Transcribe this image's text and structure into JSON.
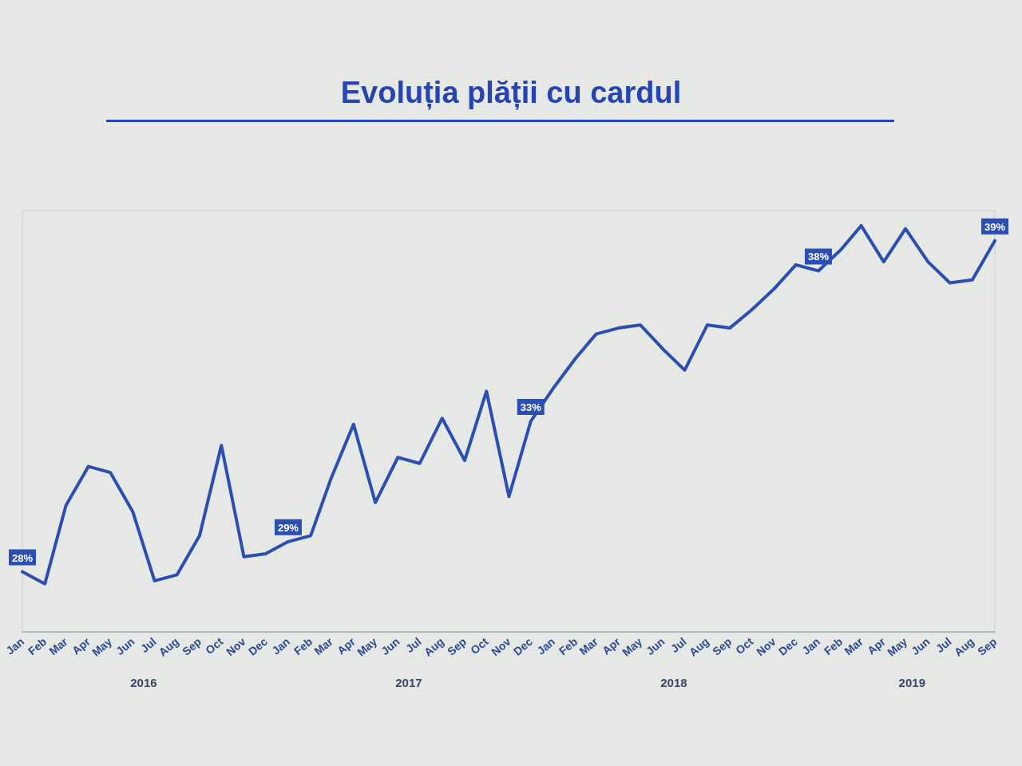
{
  "chart_data": {
    "type": "line",
    "title": "Evoluția plății cu cardul",
    "x": [
      "2016-01",
      "2016-02",
      "2016-03",
      "2016-04",
      "2016-05",
      "2016-06",
      "2016-07",
      "2016-08",
      "2016-09",
      "2016-10",
      "2016-11",
      "2016-12",
      "2017-01",
      "2017-02",
      "2017-03",
      "2017-04",
      "2017-05",
      "2017-06",
      "2017-07",
      "2017-08",
      "2017-09",
      "2017-10",
      "2017-11",
      "2017-12",
      "2018-01",
      "2018-02",
      "2018-03",
      "2018-04",
      "2018-05",
      "2018-06",
      "2018-07",
      "2018-08",
      "2018-09",
      "2018-10",
      "2018-11",
      "2018-12",
      "2019-01",
      "2019-02",
      "2019-03",
      "2019-04",
      "2019-05",
      "2019-06",
      "2019-07",
      "2019-08",
      "2019-09"
    ],
    "series": [
      {
        "color": "#2b4eb3",
        "values": [
          28,
          27.6,
          30.2,
          31.5,
          31.3,
          30.0,
          27.7,
          27.9,
          29.2,
          32.2,
          28.5,
          28.6,
          29,
          29.2,
          31.1,
          32.9,
          30.3,
          31.8,
          31.6,
          33.1,
          31.7,
          34.0,
          30.5,
          33,
          34.1,
          35.1,
          35.9,
          36.1,
          36.2,
          35.4,
          34.7,
          36.2,
          36.1,
          36.7,
          37.4,
          38.2,
          38,
          38.7,
          39.5,
          38.3,
          39.4,
          38.3,
          37.6,
          37.7,
          39
        ],
        "value_labels": [
          "28%",
          null,
          null,
          null,
          null,
          null,
          null,
          null,
          null,
          null,
          null,
          null,
          "29%",
          null,
          null,
          null,
          null,
          null,
          null,
          null,
          null,
          null,
          null,
          "33%",
          null,
          null,
          null,
          null,
          null,
          null,
          null,
          null,
          null,
          null,
          null,
          null,
          "38%",
          null,
          null,
          null,
          null,
          null,
          null,
          null,
          "39%"
        ]
      }
    ],
    "xlim": [
      "2016-01",
      "2019-09"
    ],
    "xticks": [
      {
        "value": "2016-01",
        "label": "Jan"
      },
      {
        "value": "2016-02",
        "label": "Feb"
      },
      {
        "value": "2016-03",
        "label": "Mar"
      },
      {
        "value": "2016-04",
        "label": "Apr"
      },
      {
        "value": "2016-05",
        "label": "May"
      },
      {
        "value": "2016-06",
        "label": "Jun"
      },
      {
        "value": "2016-07",
        "label": "Jul"
      },
      {
        "value": "2016-08",
        "label": "Aug"
      },
      {
        "value": "2016-09",
        "label": "Sep"
      },
      {
        "value": "2016-10",
        "label": "Oct"
      },
      {
        "value": "2016-11",
        "label": "Nov"
      },
      {
        "value": "2016-12",
        "label": "Dec"
      },
      {
        "value": "2017-01",
        "label": "Jan"
      },
      {
        "value": "2017-02",
        "label": "Feb"
      },
      {
        "value": "2017-03",
        "label": "Mar"
      },
      {
        "value": "2017-04",
        "label": "Apr"
      },
      {
        "value": "2017-05",
        "label": "May"
      },
      {
        "value": "2017-06",
        "label": "Jun"
      },
      {
        "value": "2017-07",
        "label": "Jul"
      },
      {
        "value": "2017-08",
        "label": "Aug"
      },
      {
        "value": "2017-09",
        "label": "Sep"
      },
      {
        "value": "2017-10",
        "label": "Oct"
      },
      {
        "value": "2017-11",
        "label": "Nov"
      },
      {
        "value": "2017-12",
        "label": "Dec"
      },
      {
        "value": "2018-01",
        "label": "Jan"
      },
      {
        "value": "2018-02",
        "label": "Feb"
      },
      {
        "value": "2018-03",
        "label": "Mar"
      },
      {
        "value": "2018-04",
        "label": "Apr"
      },
      {
        "value": "2018-05",
        "label": "May"
      },
      {
        "value": "2018-06",
        "label": "Jun"
      },
      {
        "value": "2018-07",
        "label": "Jul"
      },
      {
        "value": "2018-08",
        "label": "Aug"
      },
      {
        "value": "2018-09",
        "label": "Sep"
      },
      {
        "value": "2018-10",
        "label": "Oct"
      },
      {
        "value": "2018-11",
        "label": "Nov"
      },
      {
        "value": "2018-12",
        "label": "Dec"
      },
      {
        "value": "2019-01",
        "label": "Jan"
      },
      {
        "value": "2019-02",
        "label": "Feb"
      },
      {
        "value": "2019-03",
        "label": "Mar"
      },
      {
        "value": "2019-04",
        "label": "Apr"
      },
      {
        "value": "2019-05",
        "label": "May"
      },
      {
        "value": "2019-06",
        "label": "Jun"
      },
      {
        "value": "2019-07",
        "label": "Jul"
      },
      {
        "value": "2019-08",
        "label": "Aug"
      },
      {
        "value": "2019-09",
        "label": "Sep"
      }
    ],
    "x2lim": [
      "2016-01",
      "2019-09"
    ],
    "x2ticks": [
      {
        "value": "2016-06-16",
        "label": "2016"
      },
      {
        "value": "2017-06-16",
        "label": "2017"
      },
      {
        "value": "2018-06-16",
        "label": "2018"
      },
      {
        "value": "2019-05-10",
        "label": "2019"
      }
    ],
    "marker": "none",
    "line_style": "solid"
  }
}
